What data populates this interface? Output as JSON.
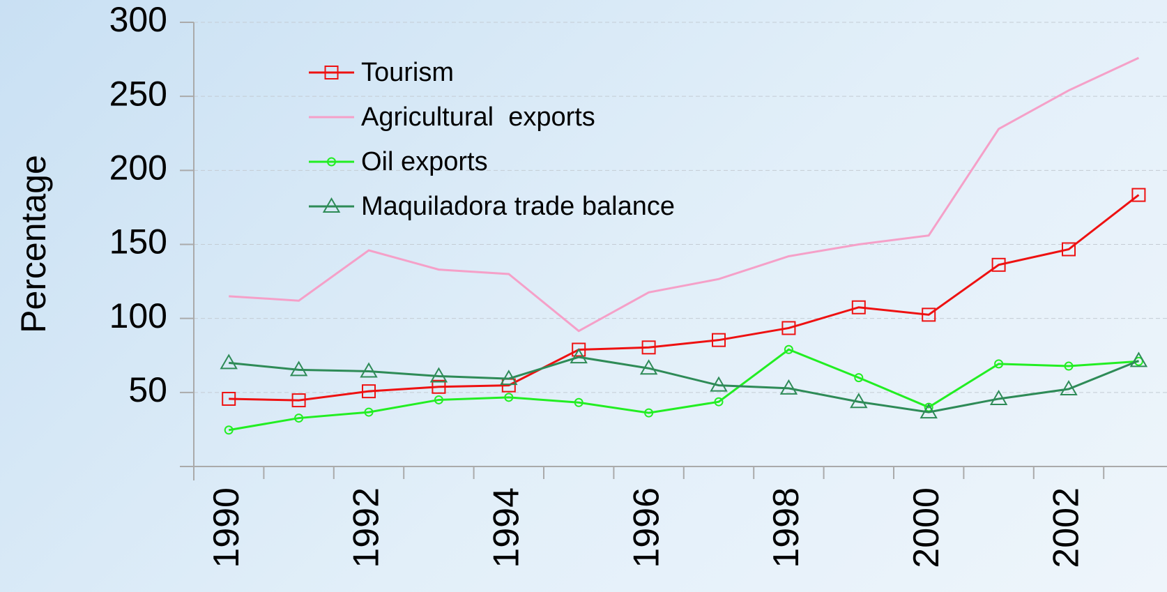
{
  "chart_data": {
    "type": "line",
    "y_label": "Percentage",
    "categories": [
      "1990",
      null,
      "1992",
      null,
      "1994",
      null,
      "1996",
      null,
      "1998",
      null,
      "2000",
      null,
      "2002",
      null
    ],
    "series": [
      {
        "name": "Tourism",
        "color": "#ee1111",
        "marker": "square",
        "values": [
          45.7,
          44.7,
          50.8,
          53.8,
          54.8,
          78.9,
          80.4,
          85.4,
          93.5,
          107.5,
          102.5,
          136.2,
          146.7,
          183.4
        ]
      },
      {
        "name": "Agricultural  exports",
        "color": "#f5a0c8",
        "marker": "none",
        "values": [
          115,
          112,
          146,
          133,
          130,
          91.5,
          117.6,
          126.6,
          142,
          150,
          156,
          228,
          254,
          276
        ]
      },
      {
        "name": "Oil exports",
        "color": "#22ee22",
        "marker": "circle",
        "values": [
          24.6,
          32.7,
          36.7,
          45,
          46.7,
          43.2,
          36.2,
          43.7,
          79,
          60,
          40,
          69.3,
          67.8,
          71
        ]
      },
      {
        "name": "Maquiladora trade balance",
        "color": "#2e8b57",
        "marker": "triangle",
        "values": [
          70,
          65.3,
          64.3,
          61,
          59.3,
          73.9,
          66.3,
          54.8,
          52.8,
          43.7,
          36.7,
          45.7,
          52.3,
          71.4
        ]
      }
    ],
    "ylim": [
      0,
      300
    ],
    "yticks": [
      50,
      100,
      150,
      200,
      250,
      300
    ],
    "grid": true
  }
}
